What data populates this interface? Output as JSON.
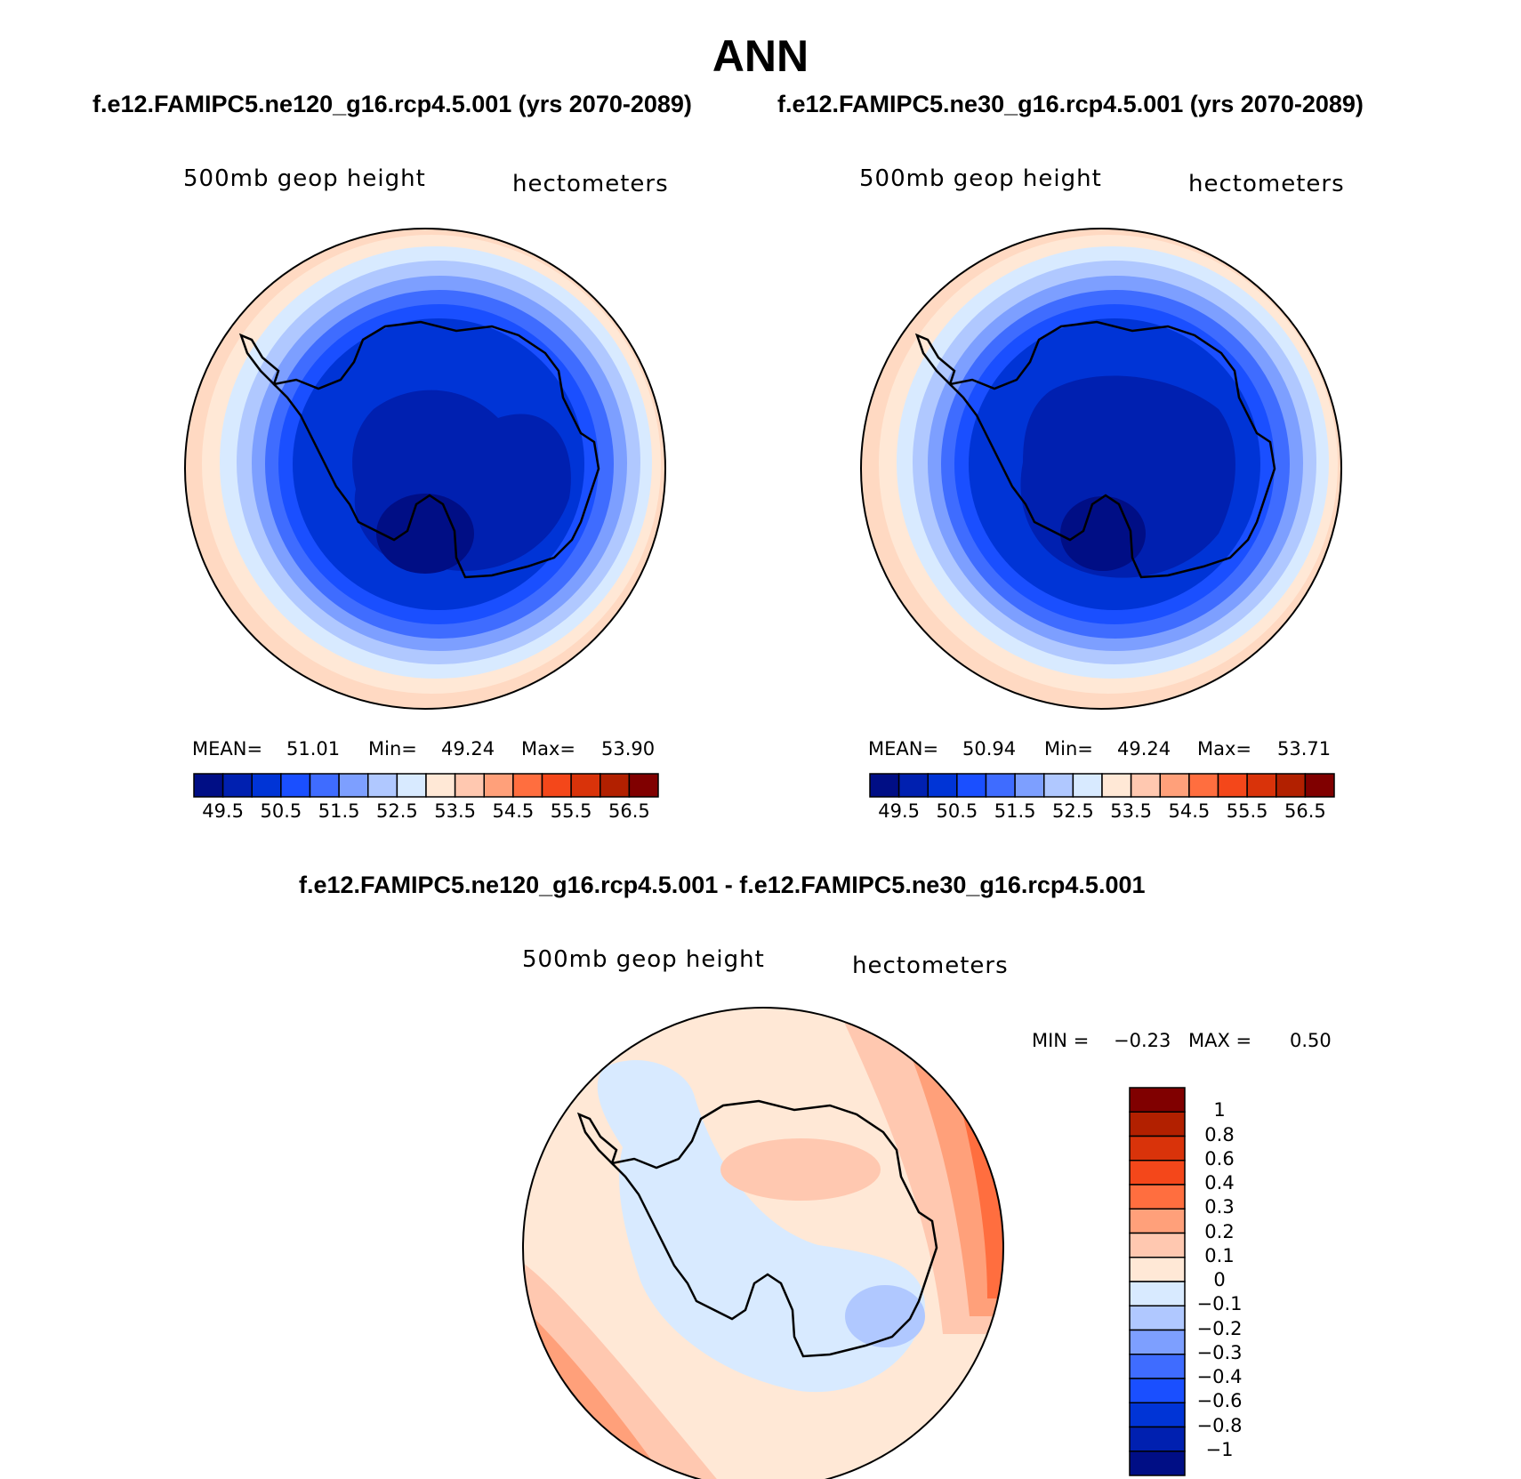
{
  "title": "ANN",
  "panels": [
    {
      "case": "f.e12.FAMIPC5.ne120_g16.rcp4.5.001 (yrs 2070-2089)",
      "variable": "500mb geop height",
      "units": "hectometers",
      "stats": {
        "mean_label": "MEAN=",
        "mean": "51.01",
        "min_label": "Min=",
        "min": "49.24",
        "max_label": "Max=",
        "max": "53.90"
      },
      "colorbar_labels": [
        "49.5",
        "50.5",
        "51.5",
        "52.5",
        "53.5",
        "54.5",
        "55.5",
        "56.5"
      ]
    },
    {
      "case": "f.e12.FAMIPC5.ne30_g16.rcp4.5.001 (yrs 2070-2089)",
      "variable": "500mb geop height",
      "units": "hectometers",
      "stats": {
        "mean_label": "MEAN=",
        "mean": "50.94",
        "min_label": "Min=",
        "min": "49.24",
        "max_label": "Max=",
        "max": "53.71"
      },
      "colorbar_labels": [
        "49.5",
        "50.5",
        "51.5",
        "52.5",
        "53.5",
        "54.5",
        "55.5",
        "56.5"
      ]
    }
  ],
  "diff": {
    "title": "f.e12.FAMIPC5.ne120_g16.rcp4.5.001 - f.e12.FAMIPC5.ne30_g16.rcp4.5.001",
    "variable": "500mb geop height",
    "units": "hectometers",
    "min_label": "MIN =",
    "min": "−0.23",
    "max_label": "MAX =",
    "max": "0.50",
    "colorbar_labels": [
      "1",
      "0.8",
      "0.6",
      "0.4",
      "0.3",
      "0.2",
      "0.1",
      "0",
      "−0.1",
      "−0.2",
      "−0.3",
      "−0.4",
      "−0.6",
      "−0.8",
      "−1"
    ]
  },
  "colors": {
    "abs_scale": [
      "#000e85",
      "#0020b0",
      "#0034d6",
      "#1a4fff",
      "#3f6cff",
      "#7d9fff",
      "#b0c8ff",
      "#d8eaff",
      "#ffe8d6",
      "#ffc8b0",
      "#ffa07a",
      "#ff6e3f",
      "#f4471a",
      "#d9330a",
      "#b22000",
      "#800000"
    ],
    "diff_scale": [
      "#800000",
      "#b22000",
      "#d9330a",
      "#f4471a",
      "#ff6e3f",
      "#ffa07a",
      "#ffc8b0",
      "#ffe8d6",
      "#d8eaff",
      "#b0c8ff",
      "#7d9fff",
      "#3f6cff",
      "#1a4fff",
      "#0034d6",
      "#0020b0",
      "#000e85"
    ]
  }
}
